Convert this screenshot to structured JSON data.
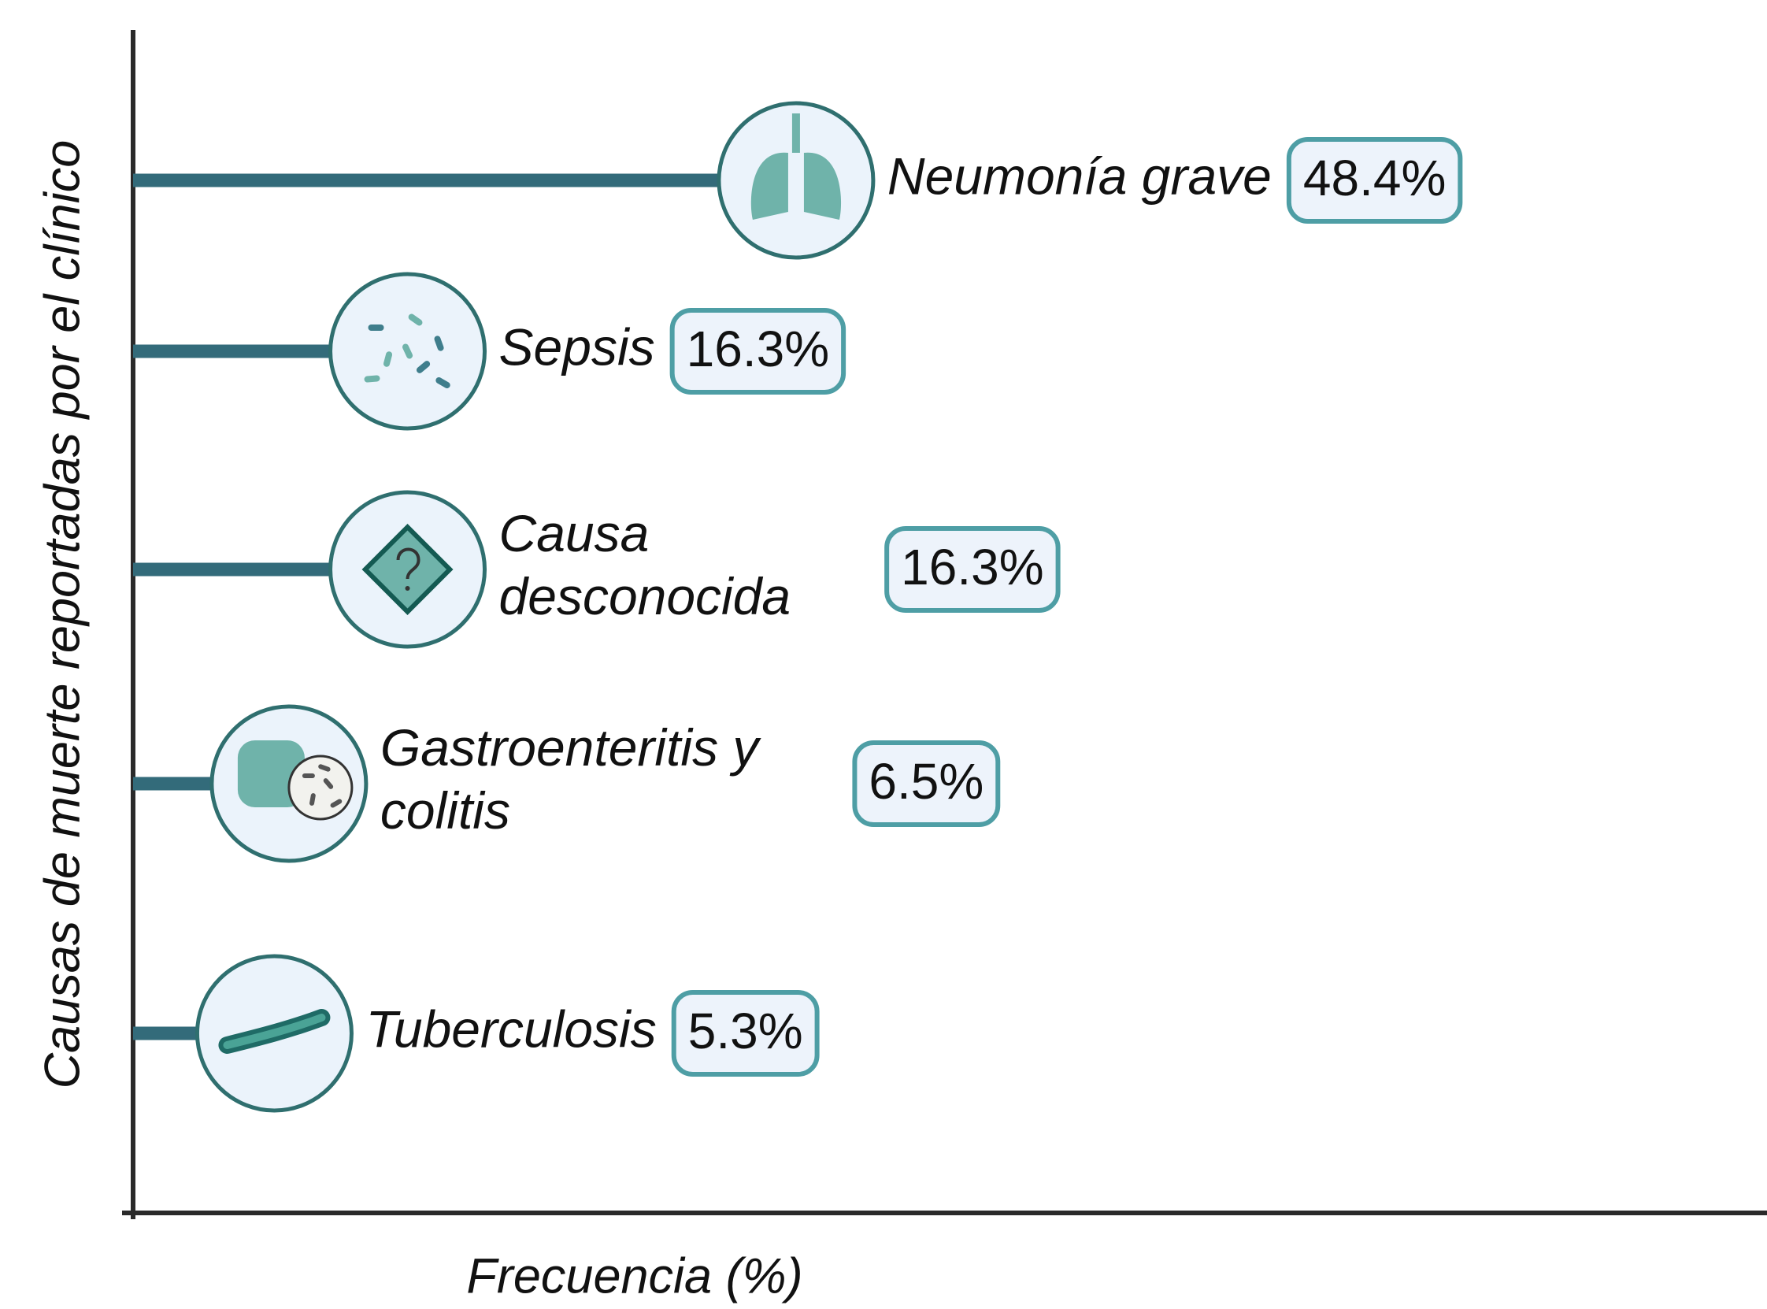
{
  "chart_data": {
    "type": "lollipop",
    "xlabel": "Frecuencia (%)",
    "ylabel": "Causas de muerte reportadas por el clínico",
    "categories": [
      "Neumonía grave",
      "Sepsis",
      "Causa desconocida",
      "Gastroenteritis y colitis",
      "Tuberculosis"
    ],
    "values": [
      48.4,
      16.3,
      16.3,
      6.5,
      5.3
    ],
    "value_labels": [
      "48.4%",
      "16.3%",
      "16.3%",
      "6.5%",
      "5.3%"
    ],
    "color": "#336b7a",
    "xlim": [
      0,
      135
    ]
  }
}
